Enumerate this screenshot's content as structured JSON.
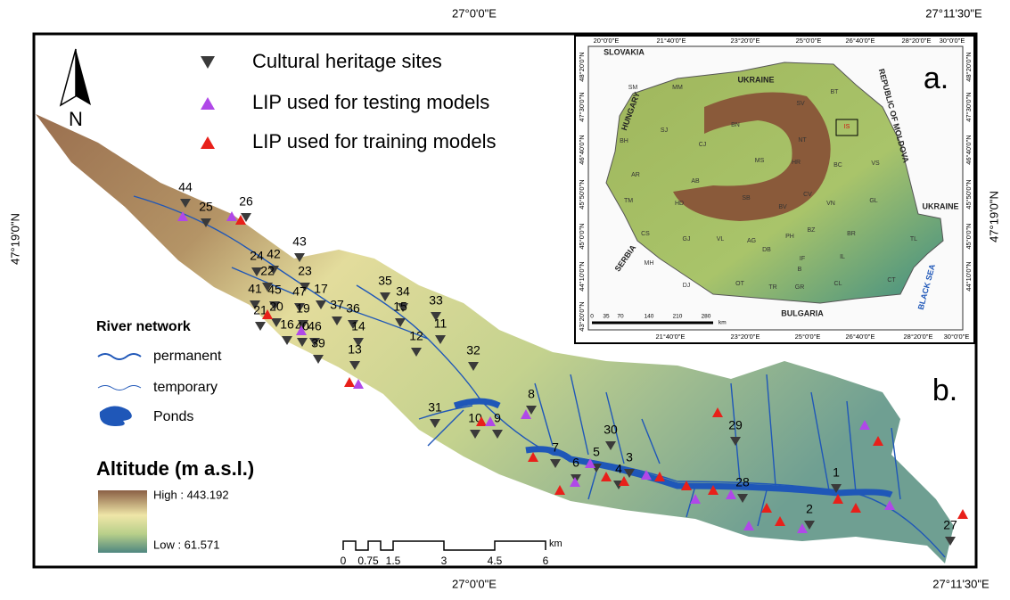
{
  "coordinates": {
    "top": [
      "27°0'0\"E",
      "27°11'30\"E"
    ],
    "bottom": [
      "27°0'0\"E",
      "27°11'30\"E"
    ],
    "left": "47°19'0\"N",
    "right": "47°19'0\"N"
  },
  "north_arrow": "N",
  "legend": {
    "sites": [
      "Cultural heritage sites",
      "LIP used for testing models",
      "LIP used for training models"
    ],
    "river_title": "River network",
    "rivers": [
      "permanent",
      "temporary",
      "Ponds"
    ],
    "altitude_title": "Altitude (m a.s.l.)",
    "high": "High : 443.192",
    "low": "Low : 61.571"
  },
  "scale": {
    "ticks": [
      "0",
      "0.75",
      "1.5",
      "3",
      "4.5",
      "6"
    ],
    "unit": "km"
  },
  "panel_labels": [
    "a.",
    "b."
  ],
  "site_labels": [
    "44",
    "25",
    "26",
    "43",
    "42",
    "24",
    "22",
    "23",
    "41",
    "45",
    "47",
    "17",
    "35",
    "34",
    "33",
    "15",
    "21",
    "20",
    "19",
    "37",
    "36",
    "16",
    "40",
    "46",
    "11",
    "12",
    "14",
    "39",
    "13",
    "32",
    "8",
    "31",
    "10",
    "9",
    "29",
    "30",
    "7",
    "6",
    "5",
    "4",
    "3",
    "28",
    "1",
    "2",
    "27"
  ],
  "inset": {
    "countries": [
      "SLOVAKIA",
      "UKRAINE",
      "HUNGARY",
      "REPUBLIC OF MOLDOVA",
      "UKRAINE",
      "SERBIA",
      "BULGARIA",
      "BLACK SEA"
    ],
    "top_lon": [
      "20°0'0\"E",
      "21°40'0\"E",
      "23°20'0\"E",
      "25°0'0\"E",
      "26°40'0\"E",
      "28°20'0\"E",
      "30°0'0\"E"
    ],
    "bottom_lon": [
      "21°40'0\"E",
      "23°20'0\"E",
      "25°0'0\"E",
      "26°40'0\"E",
      "28°20'0\"E",
      "30°0'0\"E"
    ],
    "left_lat": [
      "48°20'0\"N",
      "47°30'0\"N",
      "46°40'0\"N",
      "45°50'0\"N",
      "45°0'0\"N",
      "44°10'0\"N",
      "43°20'0\"N"
    ],
    "right_lat": [
      "48°20'0\"N",
      "47°30'0\"N",
      "46°40'0\"N",
      "45°50'0\"N",
      "45°0'0\"N",
      "44°10'0\"N"
    ],
    "counties": [
      "SM",
      "MM",
      "SV",
      "BT",
      "IS",
      "BN",
      "SJ",
      "NT",
      "BH",
      "CJ",
      "MS",
      "HR",
      "BC",
      "VS",
      "AR",
      "AB",
      "CV",
      "VN",
      "GL",
      "TM",
      "HD",
      "SB",
      "BV",
      "BZ",
      "BR",
      "TL",
      "CS",
      "GJ",
      "VL",
      "AG",
      "DB",
      "PH",
      "IL",
      "IF",
      "B",
      "MH",
      "OT",
      "TR",
      "GR",
      "CL",
      "CT",
      "DJ"
    ],
    "scale": {
      "ticks": [
        "0",
        "35",
        "70",
        "140",
        "210",
        "280"
      ],
      "unit": "km"
    }
  }
}
